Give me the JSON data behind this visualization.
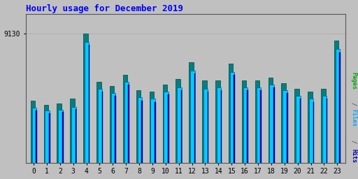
{
  "title": "Hourly usage for December 2019",
  "hours": [
    0,
    1,
    2,
    3,
    4,
    5,
    6,
    7,
    8,
    9,
    10,
    11,
    12,
    13,
    14,
    15,
    16,
    17,
    18,
    19,
    20,
    21,
    22,
    23
  ],
  "pages": [
    4400,
    4100,
    4200,
    4500,
    9130,
    5700,
    5400,
    6200,
    5100,
    5000,
    5500,
    5900,
    7100,
    5800,
    5800,
    7000,
    5800,
    5800,
    6000,
    5600,
    5200,
    5000,
    5200,
    8600
  ],
  "files": [
    3900,
    3700,
    3750,
    3950,
    8500,
    5200,
    4900,
    5700,
    4600,
    4500,
    5000,
    5300,
    6500,
    5200,
    5300,
    6400,
    5300,
    5300,
    5500,
    5100,
    4700,
    4500,
    4700,
    8000
  ],
  "hits": [
    3700,
    3500,
    3600,
    3800,
    8300,
    5000,
    4700,
    5500,
    4400,
    4300,
    4800,
    5100,
    6300,
    5000,
    5100,
    6200,
    5100,
    5100,
    5300,
    4900,
    4500,
    4300,
    4500,
    7800
  ],
  "teal_color": "#008080",
  "cyan_color": "#00ccff",
  "blue_color": "#0000cc",
  "bg_color": "#c0c0c0",
  "title_color": "#0000ff",
  "ytick_label": "9130",
  "ylim": [
    0,
    10500
  ],
  "yticks": [
    9130
  ],
  "bar_width": 0.38
}
